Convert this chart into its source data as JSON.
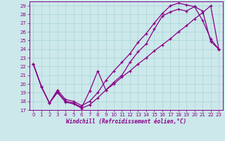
{
  "xlabel": "Windchill (Refroidissement éolien,°C)",
  "bg_color": "#cce8ea",
  "grid_color": "#aad4d8",
  "line_color": "#880088",
  "xlim": [
    -0.5,
    23.5
  ],
  "ylim": [
    17,
    29.5
  ],
  "yticks": [
    17,
    18,
    19,
    20,
    21,
    22,
    23,
    24,
    25,
    26,
    27,
    28,
    29
  ],
  "xticks": [
    0,
    1,
    2,
    3,
    4,
    5,
    6,
    7,
    8,
    9,
    10,
    11,
    12,
    13,
    14,
    15,
    16,
    17,
    18,
    19,
    20,
    21,
    22,
    23
  ],
  "line1_x": [
    0,
    1,
    2,
    3,
    4,
    5,
    6,
    7,
    8,
    9,
    10,
    11,
    12,
    13,
    14,
    15,
    16,
    17,
    18,
    19,
    20,
    21,
    22,
    23
  ],
  "line1_y": [
    22.3,
    19.7,
    17.8,
    19.1,
    18.0,
    17.8,
    17.3,
    19.2,
    21.5,
    19.3,
    20.2,
    21.0,
    22.5,
    23.7,
    24.6,
    26.3,
    27.8,
    28.3,
    28.6,
    28.4,
    28.9,
    28.4,
    24.9,
    24.0
  ],
  "line2_x": [
    0,
    1,
    2,
    3,
    4,
    5,
    6,
    7,
    8,
    9,
    10,
    11,
    12,
    13,
    14,
    15,
    16,
    17,
    18,
    19,
    20,
    21,
    22,
    23
  ],
  "line2_y": [
    22.3,
    19.7,
    17.8,
    19.3,
    18.2,
    18.0,
    17.5,
    18.0,
    19.0,
    20.4,
    21.5,
    22.5,
    23.5,
    24.8,
    25.8,
    27.0,
    28.1,
    29.0,
    29.3,
    29.1,
    28.9,
    27.3,
    25.2,
    24.0
  ],
  "line3_x": [
    0,
    1,
    2,
    3,
    4,
    5,
    6,
    7,
    8,
    9,
    10,
    11,
    12,
    13,
    14,
    15,
    16,
    17,
    18,
    19,
    20,
    21,
    22,
    23
  ],
  "line3_y": [
    22.3,
    19.7,
    17.8,
    19.0,
    17.9,
    17.7,
    17.2,
    17.6,
    18.4,
    19.3,
    20.0,
    20.8,
    21.5,
    22.3,
    23.0,
    23.8,
    24.5,
    25.2,
    26.0,
    26.7,
    27.5,
    28.2,
    29.0,
    24.0
  ],
  "xlabel_fontsize": 5.5,
  "tick_fontsize": 5,
  "linewidth": 0.9,
  "markersize": 3
}
